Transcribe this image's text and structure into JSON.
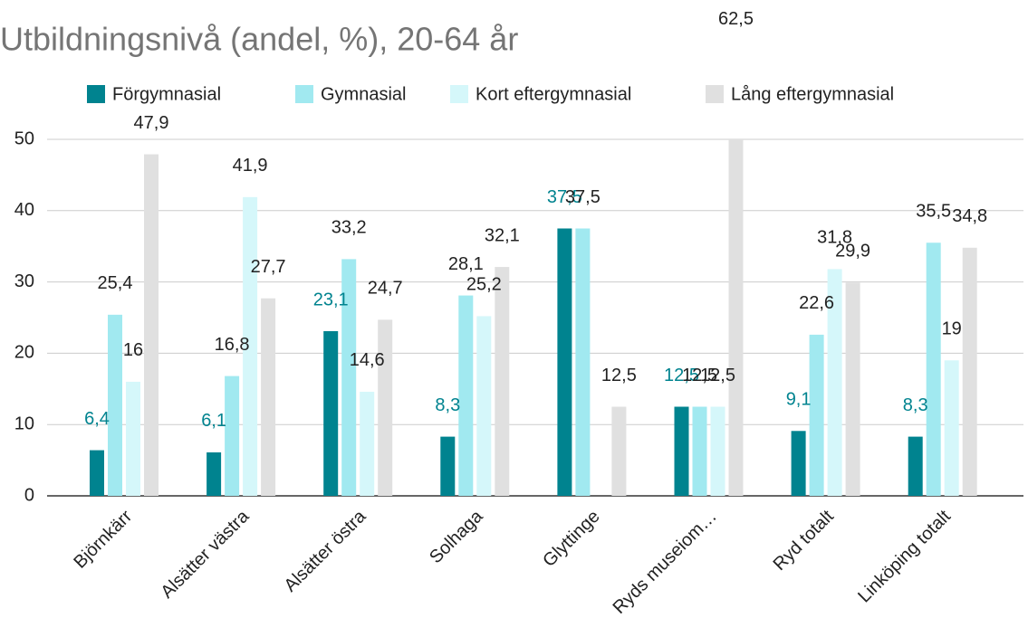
{
  "chart_data": {
    "type": "bar",
    "title": "Utbildningsnivå (andel, %), 20-64 år",
    "categories": [
      "Björnkärr",
      "Alsätter västra",
      "Alsätter östra",
      "Solhaga",
      "Glyttinge",
      "Ryds museiom…",
      "Ryd totalt",
      "Linköping totalt"
    ],
    "series": [
      {
        "name": "Förgymnasial",
        "color": "#00838f",
        "values": [
          6.4,
          6.1,
          23.1,
          8.3,
          37.5,
          12.5,
          9.1,
          8.3
        ],
        "value_labels": [
          "6,4",
          "6,1",
          "23,1",
          "8,3",
          "37,5",
          "12,5",
          "9,1",
          "8,3"
        ]
      },
      {
        "name": "Gymnasial",
        "color": "#a1e9f0",
        "values": [
          25.4,
          16.8,
          33.2,
          28.1,
          37.5,
          12.5,
          22.6,
          35.5
        ],
        "value_labels": [
          "25,4",
          "16,8",
          "33,2",
          "28,1",
          "37,5",
          "12,5",
          "22,6",
          "35,5"
        ]
      },
      {
        "name": "Kort eftergymnasial",
        "color": "#d5f7fa",
        "values": [
          16,
          41.9,
          14.6,
          25.2,
          null,
          12.5,
          31.8,
          19
        ],
        "value_labels": [
          "16",
          "41,9",
          "14,6",
          "25,2",
          null,
          "12,5",
          "31,8",
          "19"
        ]
      },
      {
        "name": "Lång eftergymnasial",
        "color": "#e0e0e0",
        "values": [
          47.9,
          27.7,
          24.7,
          32.1,
          12.5,
          62.5,
          29.9,
          34.8
        ],
        "value_labels": [
          "47,9",
          "27,7",
          "24,7",
          "32,1",
          "12,5",
          "62,5",
          "29,9",
          "34,8"
        ]
      }
    ],
    "ylim": [
      0,
      50
    ],
    "yticks": [
      0,
      10,
      20,
      30,
      40,
      50
    ],
    "grid": true,
    "legend": "top"
  }
}
